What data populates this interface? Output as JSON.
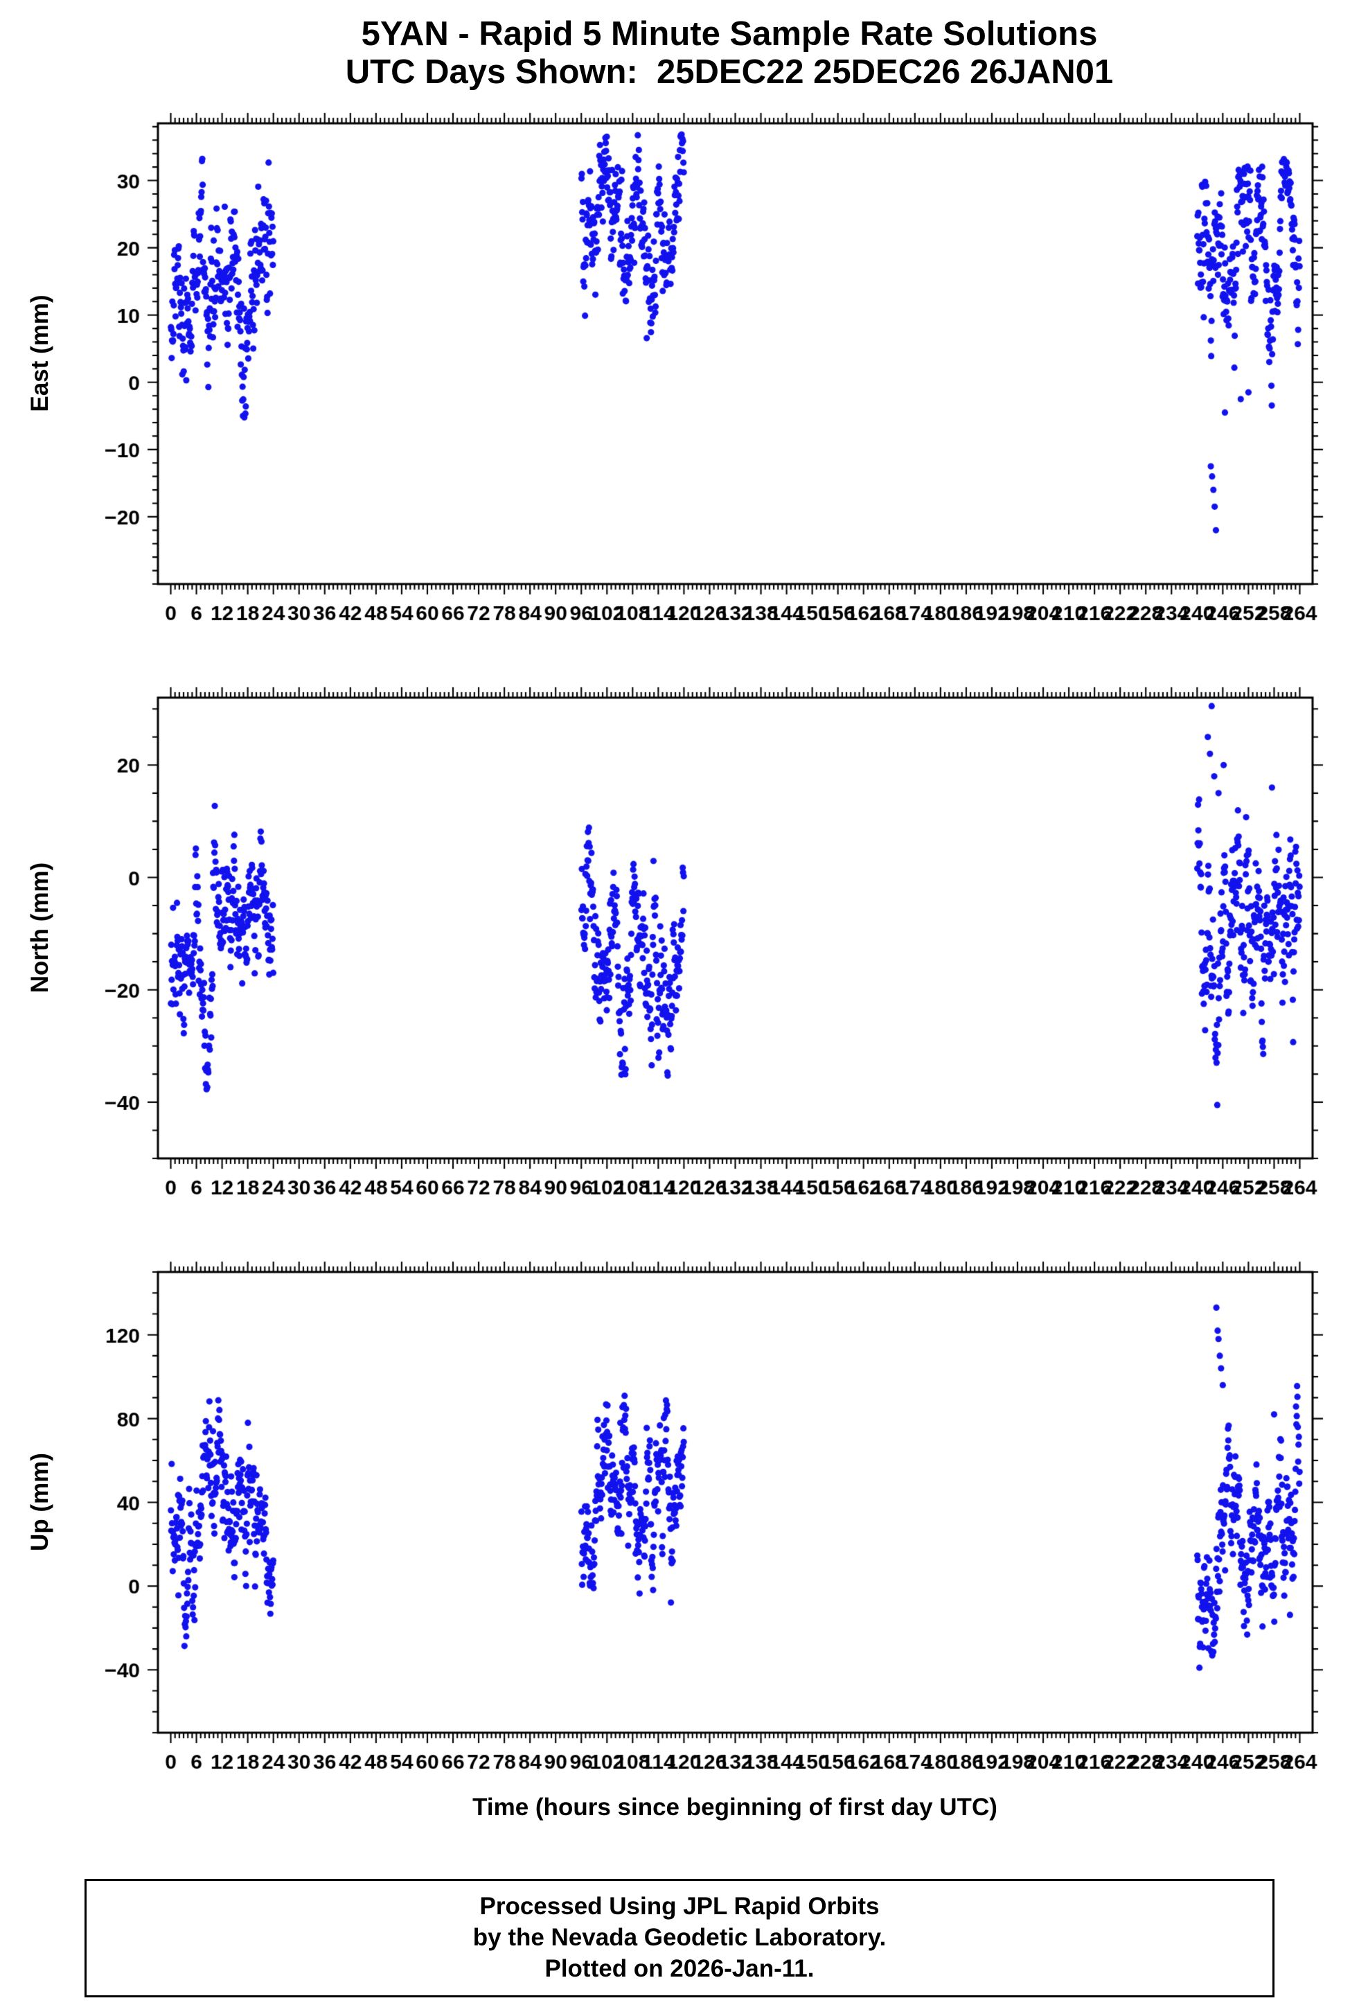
{
  "title": {
    "line1": "5YAN - Rapid 5 Minute Sample Rate Solutions",
    "line2": "UTC Days Shown:  25DEC22 25DEC26 26JAN01"
  },
  "xaxis": {
    "label": "Time (hours since beginning of first day UTC)",
    "tick_start": 0,
    "tick_end": 264,
    "major_step": 6,
    "minor_step": 1,
    "xlim": [
      -3,
      267
    ]
  },
  "style": {
    "point_color": "#1212ee",
    "frame_color": "#000000",
    "point_radius": 4.6
  },
  "footer": {
    "line1": "Processed Using JPL Rapid Orbits",
    "line2": "by the Nevada Geodetic Laboratory.",
    "line3": "Plotted on 2026-Jan-11."
  },
  "chart_data": [
    {
      "type": "scatter",
      "ylabel": "East (mm)",
      "ylim": [
        -30,
        38.5
      ],
      "yticks": [
        -20,
        -10,
        0,
        10,
        20,
        30
      ],
      "y_minor_step": 2,
      "clusters": [
        {
          "x_range": [
            0,
            24
          ],
          "n": 288,
          "mean": 17,
          "std": 7,
          "y_min": -7,
          "y_max": 34,
          "seed": 11
        },
        {
          "x_range": [
            96,
            120
          ],
          "n": 288,
          "mean": 20,
          "std": 6,
          "y_min": 2.5,
          "y_max": 38,
          "seed": 12
        },
        {
          "x_range": [
            240,
            264
          ],
          "n": 288,
          "mean": 17,
          "std": 7,
          "y_min": -5,
          "y_max": 33.5,
          "seed": 13,
          "outliers": [
            [
              243.2,
              -12.5
            ],
            [
              243.5,
              -14
            ],
            [
              243.8,
              -16
            ],
            [
              244.1,
              -18.5
            ],
            [
              244.4,
              -22
            ],
            [
              246.5,
              -4.5
            ],
            [
              250.2,
              -2.5
            ],
            [
              252.0,
              -1.5
            ]
          ]
        }
      ]
    },
    {
      "type": "scatter",
      "ylabel": "North (mm)",
      "ylim": [
        -50,
        32
      ],
      "yticks": [
        -40,
        -20,
        0,
        20
      ],
      "y_minor_step": 5,
      "clusters": [
        {
          "x_range": [
            0,
            24
          ],
          "n": 288,
          "mean": -13,
          "std": 8,
          "y_min": -38,
          "y_max": 14,
          "seed": 21
        },
        {
          "x_range": [
            96,
            120
          ],
          "n": 288,
          "mean": -11,
          "std": 8,
          "y_min": -36,
          "y_max": 10,
          "seed": 22
        },
        {
          "x_range": [
            240,
            264
          ],
          "n": 288,
          "mean": -14,
          "std": 9,
          "y_min": -43,
          "y_max": 14,
          "seed": 23,
          "outliers": [
            [
              242.5,
              25
            ],
            [
              243.0,
              22
            ],
            [
              243.4,
              30.5
            ],
            [
              244.0,
              18
            ],
            [
              245.0,
              15
            ],
            [
              246.2,
              20
            ],
            [
              257.5,
              16
            ]
          ]
        }
      ]
    },
    {
      "type": "scatter",
      "ylabel": "Up (mm)",
      "ylim": [
        -70,
        150
      ],
      "yticks": [
        -40,
        0,
        40,
        80,
        120
      ],
      "y_minor_step": 10,
      "clusters": [
        {
          "x_range": [
            0,
            24
          ],
          "n": 288,
          "mean": 30,
          "std": 21,
          "y_min": -52,
          "y_max": 112,
          "seed": 31
        },
        {
          "x_range": [
            96,
            120
          ],
          "n": 288,
          "mean": 33,
          "std": 19,
          "y_min": -41,
          "y_max": 92,
          "seed": 32
        },
        {
          "x_range": [
            240,
            264
          ],
          "n": 288,
          "mean": 18,
          "std": 24,
          "y_min": -48,
          "y_max": 100,
          "seed": 33,
          "outliers": [
            [
              244.5,
              133
            ],
            [
              244.8,
              122
            ],
            [
              245.0,
              118
            ],
            [
              245.3,
              110
            ],
            [
              245.6,
              104
            ],
            [
              246.0,
              96
            ],
            [
              258.0,
              82
            ]
          ]
        }
      ]
    }
  ]
}
